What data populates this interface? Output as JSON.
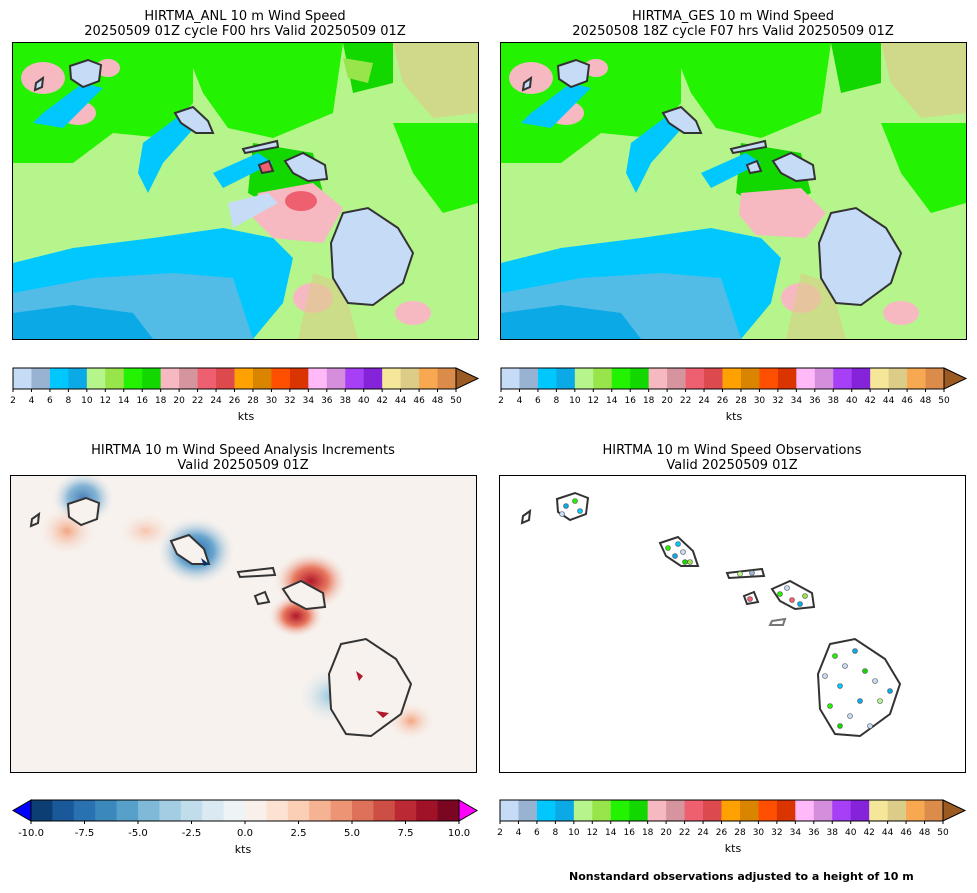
{
  "panels": [
    {
      "title_line1": "HIRTMA_ANL 10 m Wind Speed",
      "title_line2": "20250509 01Z cycle F00 hrs Valid 20250509 01Z"
    },
    {
      "title_line1": "HIRTMA_GES 10 m Wind Speed",
      "title_line2": "20250508 18Z cycle F07 hrs Valid 20250509 01Z"
    },
    {
      "title_line1": "HIRTMA 10 m Wind Speed Analysis Increments",
      "title_line2": "Valid 20250509 01Z"
    },
    {
      "title_line1": "HIRTMA 10 m Wind Speed Observations",
      "title_line2": "Valid 20250509 01Z"
    }
  ],
  "speed_colorbar": {
    "label": "kts",
    "ticks": [
      "2",
      "4",
      "6",
      "8",
      "10",
      "12",
      "14",
      "16",
      "18",
      "20",
      "22",
      "24",
      "26",
      "28",
      "30",
      "32",
      "34",
      "36",
      "38",
      "40",
      "42",
      "44",
      "46",
      "48",
      "50"
    ],
    "colors": [
      "#c6dcf6",
      "#98b2d2",
      "#00c8ff",
      "#0ba9e6",
      "#b6f58c",
      "#97e44b",
      "#23f200",
      "#13d800",
      "#f7b9c1",
      "#d6949e",
      "#ee6070",
      "#dc4a4e",
      "#ffa100",
      "#da8500",
      "#ff4f00",
      "#da3500",
      "#ffb8f8",
      "#d58edc",
      "#a73ff6",
      "#8523da",
      "#f4e79a",
      "#dbcd87",
      "#f7a850",
      "#dc8c4a",
      "#9c5a23"
    ]
  },
  "increment_colorbar": {
    "label": "kts",
    "ticks": [
      "-10.0",
      "-7.5",
      "-5.0",
      "-2.5",
      "0.0",
      "2.5",
      "5.0",
      "7.5",
      "10.0"
    ],
    "under_color": "#0000ff",
    "over_color": "#ff00ff"
  },
  "footnote": "Nonstandard observations adjusted to a height of 10 m"
}
